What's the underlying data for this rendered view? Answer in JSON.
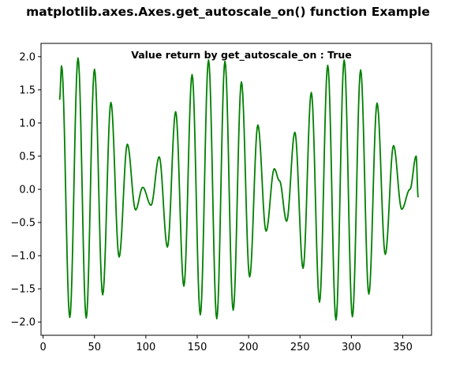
{
  "figure": {
    "suptitle": "matplotlib.axes.Axes.get_autoscale_on() function Example"
  },
  "axes": {
    "annotation": "Value return by get_autoscale_on : True"
  },
  "chart_data": {
    "type": "line",
    "title": "matplotlib.axes.Axes.get_autoscale_on() function Example",
    "annotation": "Value return by get_autoscale_on : True",
    "xlabel": "",
    "ylabel": "",
    "xlim": [
      -2,
      378
    ],
    "ylim": [
      -2.2,
      2.2
    ],
    "x_ticks": [
      0,
      50,
      100,
      150,
      200,
      250,
      300,
      350
    ],
    "y_ticks": [
      -2.0,
      -1.5,
      -1.0,
      -0.5,
      0.0,
      0.5,
      1.0,
      1.5,
      2.0
    ],
    "grid": false,
    "legend": "none",
    "series": [
      {
        "color": "#008000",
        "x_range": [
          16,
          365
        ],
        "description": "sum of two sinusoids: high-frequency carrier with slow beat envelope",
        "keypoints": [
          {
            "x": 16,
            "y": 1.35
          },
          {
            "x": 18,
            "y": 1.86
          },
          {
            "x": 26,
            "y": -1.93
          },
          {
            "x": 34,
            "y": 1.98
          },
          {
            "x": 42,
            "y": -1.94
          },
          {
            "x": 50,
            "y": 1.81
          },
          {
            "x": 58,
            "y": -1.59
          },
          {
            "x": 66,
            "y": 1.31
          },
          {
            "x": 74,
            "y": -1.02
          },
          {
            "x": 82,
            "y": 0.68
          },
          {
            "x": 90,
            "y": -0.31
          },
          {
            "x": 97,
            "y": 0.03
          },
          {
            "x": 105,
            "y": -0.24
          },
          {
            "x": 113,
            "y": 0.49
          },
          {
            "x": 121,
            "y": -0.87
          },
          {
            "x": 129,
            "y": 1.17
          },
          {
            "x": 137,
            "y": -1.46
          },
          {
            "x": 145,
            "y": 1.73
          },
          {
            "x": 153,
            "y": -1.89
          },
          {
            "x": 161,
            "y": 1.95
          },
          {
            "x": 169,
            "y": -1.95
          },
          {
            "x": 177,
            "y": 1.93
          },
          {
            "x": 185,
            "y": -1.82
          },
          {
            "x": 193,
            "y": 1.62
          },
          {
            "x": 201,
            "y": -1.32
          },
          {
            "x": 209,
            "y": 0.97
          },
          {
            "x": 217,
            "y": -0.63
          },
          {
            "x": 225,
            "y": 0.31
          },
          {
            "x": 230,
            "y": 0.13
          },
          {
            "x": 237,
            "y": -0.48
          },
          {
            "x": 245,
            "y": 0.86
          },
          {
            "x": 253,
            "y": -1.19
          },
          {
            "x": 261,
            "y": 1.46
          },
          {
            "x": 269,
            "y": -1.7
          },
          {
            "x": 277,
            "y": 1.87
          },
          {
            "x": 285,
            "y": -1.97
          },
          {
            "x": 293,
            "y": 1.95
          },
          {
            "x": 301,
            "y": -1.92
          },
          {
            "x": 309,
            "y": 1.8
          },
          {
            "x": 317,
            "y": -1.58
          },
          {
            "x": 325,
            "y": 1.3
          },
          {
            "x": 333,
            "y": -0.98
          },
          {
            "x": 341,
            "y": 0.66
          },
          {
            "x": 349,
            "y": -0.3
          },
          {
            "x": 357,
            "y": 0.0
          },
          {
            "x": 363,
            "y": 0.5
          },
          {
            "x": 365,
            "y": -0.12
          }
        ]
      }
    ]
  }
}
